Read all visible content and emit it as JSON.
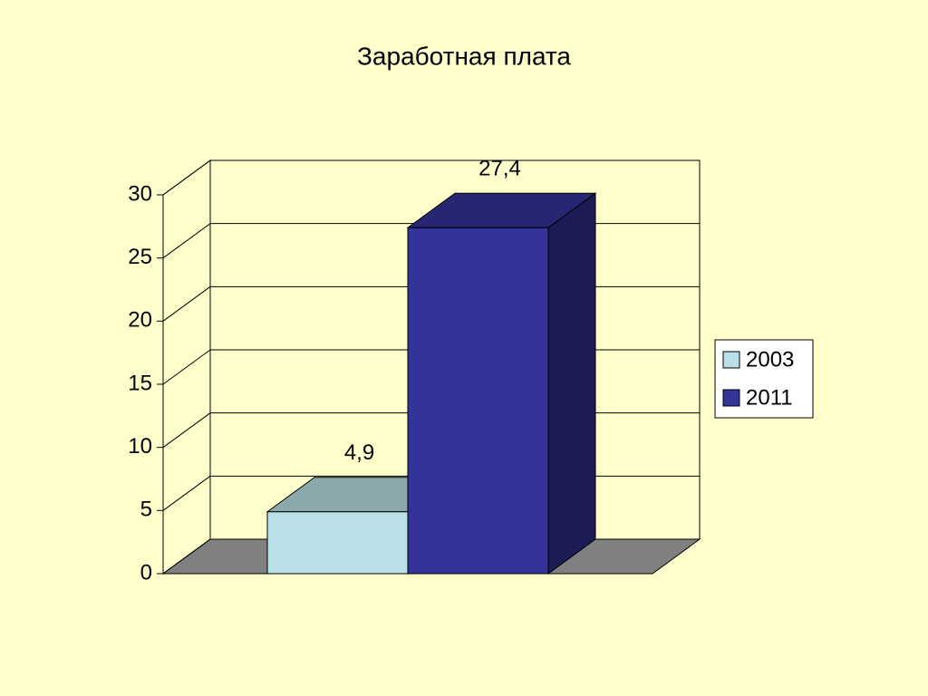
{
  "chart_data": {
    "type": "bar",
    "title": "Заработная плата",
    "categories": [
      null
    ],
    "series": [
      {
        "name": "2003",
        "color": "#b9e0e6",
        "values": [
          4.9
        ],
        "value_labels": [
          "4,9"
        ]
      },
      {
        "name": "2011",
        "color": "#333399",
        "values": [
          27.4
        ],
        "value_labels": [
          "27,4"
        ]
      }
    ],
    "ylim": [
      0,
      30
    ],
    "yticks": [
      0,
      5,
      10,
      15,
      20,
      25,
      30
    ],
    "grid": true,
    "legend": "right"
  }
}
